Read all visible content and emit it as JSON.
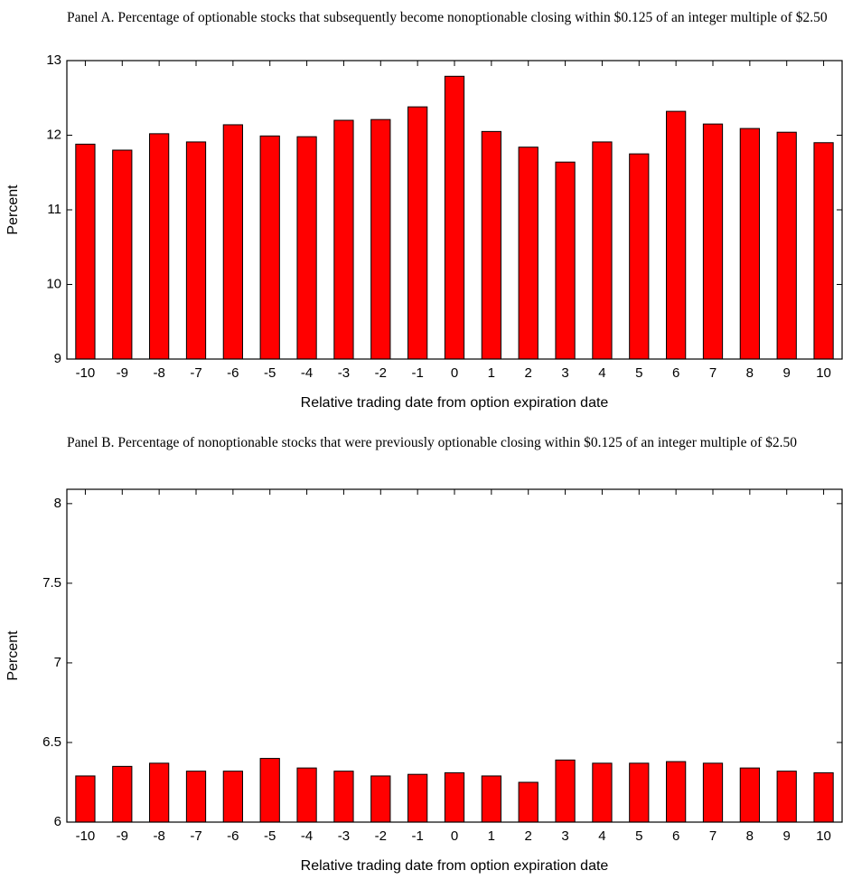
{
  "chart_data": [
    {
      "type": "bar",
      "title": "Panel A.  Percentage of optionable stocks that subsequently become nonoptionable closing within $0.125 of an integer multiple of $2.50",
      "x_label": "Relative trading date from option expiration date",
      "y_label": "Percent",
      "categories": [
        "-10",
        "-9",
        "-8",
        "-7",
        "-6",
        "-5",
        "-4",
        "-3",
        "-2",
        "-1",
        "0",
        "1",
        "2",
        "3",
        "4",
        "5",
        "6",
        "7",
        "8",
        "9",
        "10"
      ],
      "values": [
        11.88,
        11.8,
        12.02,
        11.91,
        12.14,
        11.99,
        11.98,
        12.2,
        12.21,
        12.38,
        12.79,
        12.05,
        11.84,
        11.64,
        11.91,
        11.75,
        12.32,
        12.15,
        12.09,
        12.04,
        11.9
      ],
      "color": "#ff0000",
      "ylim": [
        9,
        13
      ],
      "yticks": [
        9,
        10,
        11,
        12,
        13
      ]
    },
    {
      "type": "bar",
      "title": "Panel B.  Percentage of nonoptionable stocks that were previously optionable closing within $0.125 of an integer multiple of $2.50",
      "x_label": "Relative trading date from option expiration date",
      "y_label": "Percent",
      "categories": [
        "-10",
        "-9",
        "-8",
        "-7",
        "-6",
        "-5",
        "-4",
        "-3",
        "-2",
        "-1",
        "0",
        "1",
        "2",
        "3",
        "4",
        "5",
        "6",
        "7",
        "8",
        "9",
        "10"
      ],
      "values": [
        6.29,
        6.35,
        6.37,
        6.32,
        6.32,
        6.4,
        6.34,
        6.32,
        6.29,
        6.3,
        6.31,
        6.29,
        6.25,
        6.39,
        6.37,
        6.37,
        6.38,
        6.37,
        6.34,
        6.32,
        6.31
      ],
      "color": "#ff0000",
      "ylim": [
        6,
        8.09
      ],
      "yticks": [
        6,
        6.5,
        7,
        7.5,
        8
      ]
    }
  ]
}
